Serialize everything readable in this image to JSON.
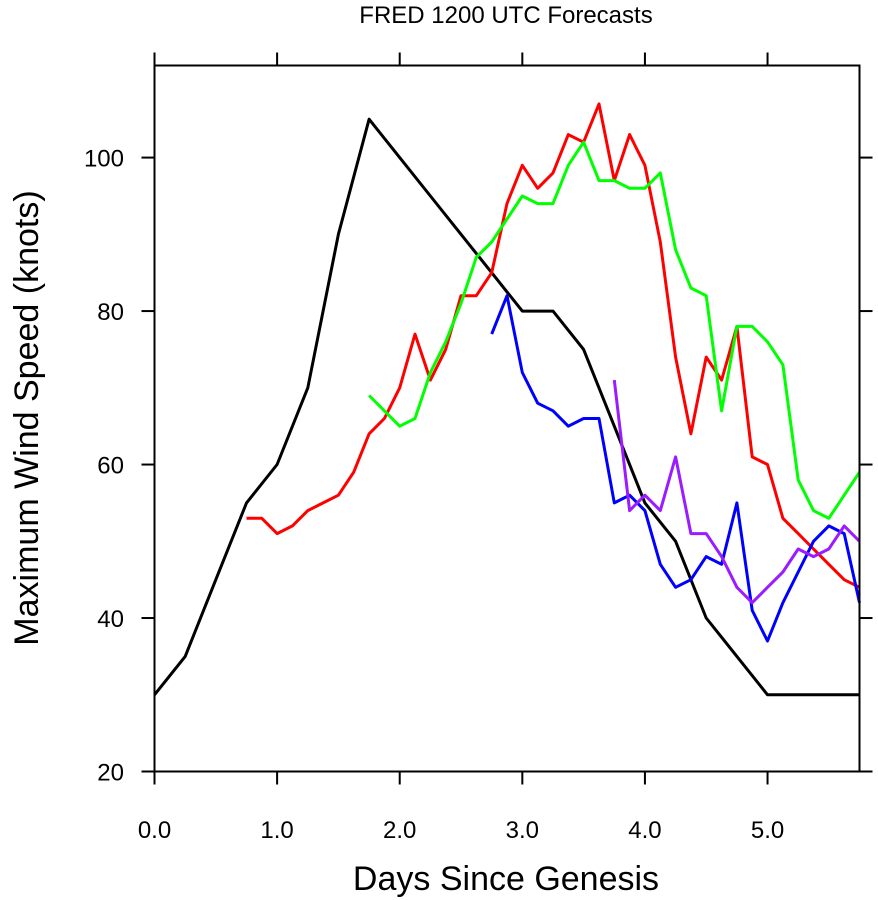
{
  "chart_data": {
    "type": "line",
    "title": "FRED 1200 UTC Forecasts",
    "xlabel": "Days Since Genesis",
    "ylabel": "Maximum Wind Speed (knots)",
    "xlim": [
      0,
      5.75
    ],
    "ylim": [
      20,
      112
    ],
    "xticks": [
      0.0,
      1.0,
      2.0,
      3.0,
      4.0,
      5.0
    ],
    "xtick_labels": [
      "0.0",
      "1.0",
      "2.0",
      "3.0",
      "4.0",
      "5.0"
    ],
    "yticks": [
      20,
      40,
      60,
      80,
      100
    ],
    "ytick_labels": [
      "20",
      "40",
      "60",
      "80",
      "100"
    ],
    "grid": false,
    "legend": false,
    "series": [
      {
        "color": "#000000",
        "x": [
          0.0,
          0.25,
          0.5,
          0.75,
          1.0,
          1.25,
          1.5,
          1.75,
          2.0,
          2.25,
          2.5,
          2.75,
          3.0,
          3.25,
          3.5,
          3.75,
          4.0,
          4.25,
          4.5,
          4.75,
          5.0,
          5.25,
          5.5,
          5.75
        ],
        "y": [
          30,
          35,
          45,
          55,
          60,
          70,
          90,
          105,
          100,
          95,
          90,
          85,
          80,
          80,
          75,
          65,
          55,
          50,
          40,
          35,
          30,
          30,
          30,
          30
        ]
      },
      {
        "color": "#ff0000",
        "x": [
          0.75,
          0.875,
          1.0,
          1.125,
          1.25,
          1.375,
          1.5,
          1.625,
          1.75,
          1.875,
          2.0,
          2.125,
          2.25,
          2.375,
          2.5,
          2.625,
          2.75,
          2.875,
          3.0,
          3.125,
          3.25,
          3.375,
          3.5,
          3.625,
          3.75,
          3.875,
          4.0,
          4.125,
          4.25,
          4.375,
          4.5,
          4.625,
          4.75,
          4.875,
          5.0,
          5.125,
          5.25,
          5.375,
          5.5,
          5.625,
          5.75
        ],
        "y": [
          53,
          53,
          51,
          52,
          54,
          55,
          56,
          59,
          64,
          66,
          70,
          77,
          71,
          75,
          82,
          82,
          85,
          94,
          99,
          96,
          98,
          103,
          102,
          107,
          97,
          103,
          99,
          89,
          74,
          64,
          74,
          71,
          78,
          61,
          60,
          53,
          51,
          49,
          47,
          45,
          44
        ]
      },
      {
        "color": "#00ff00",
        "x": [
          1.75,
          1.875,
          2.0,
          2.125,
          2.25,
          2.375,
          2.5,
          2.625,
          2.75,
          2.875,
          3.0,
          3.125,
          3.25,
          3.375,
          3.5,
          3.625,
          3.75,
          3.875,
          4.0,
          4.125,
          4.25,
          4.375,
          4.5,
          4.625,
          4.75,
          4.875,
          5.0,
          5.125,
          5.25,
          5.375,
          5.5,
          5.625,
          5.75
        ],
        "y": [
          69,
          67,
          65,
          66,
          72,
          76,
          81,
          87,
          89,
          92,
          95,
          94,
          94,
          99,
          102,
          97,
          97,
          96,
          96,
          98,
          88,
          83,
          82,
          67,
          78,
          78,
          76,
          73,
          58,
          54,
          53,
          56,
          59
        ]
      },
      {
        "color": "#0000ff",
        "x": [
          2.75,
          2.875,
          3.0,
          3.125,
          3.25,
          3.375,
          3.5,
          3.625,
          3.75,
          3.875,
          4.0,
          4.125,
          4.25,
          4.375,
          4.5,
          4.625,
          4.75,
          4.875,
          5.0,
          5.125,
          5.25,
          5.375,
          5.5,
          5.625,
          5.75
        ],
        "y": [
          77,
          82,
          72,
          68,
          67,
          65,
          66,
          66,
          55,
          56,
          54,
          47,
          44,
          45,
          48,
          47,
          55,
          41,
          37,
          42,
          46,
          50,
          52,
          51,
          42
        ]
      },
      {
        "color": "#9b1cff",
        "x": [
          3.75,
          3.875,
          4.0,
          4.125,
          4.25,
          4.375,
          4.5,
          4.625,
          4.75,
          4.875,
          5.0,
          5.125,
          5.25,
          5.375,
          5.5,
          5.625,
          5.75
        ],
        "y": [
          71,
          54,
          56,
          54,
          61,
          51,
          51,
          48,
          44,
          42,
          44,
          46,
          49,
          48,
          49,
          52,
          50
        ]
      }
    ]
  }
}
